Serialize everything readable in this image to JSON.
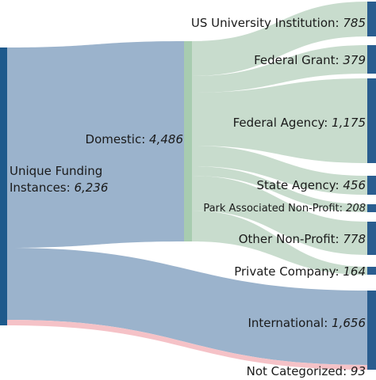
{
  "colors": {
    "source_node": "#1e5a8c",
    "target_node": "#2a5d8f",
    "domestic_node": "#a8ccb0",
    "flow_domestic": "#9bb3cc",
    "flow_domestic_split": "#c8dccd",
    "flow_not_categorized": "#f5c2c7",
    "text": "#1a1a1a"
  },
  "source": {
    "name": "Unique Funding Instances",
    "line1": "Unique Funding",
    "line2_prefix": "Instances: ",
    "value": "6,236"
  },
  "domestic": {
    "name": "Domestic",
    "prefix": "Domestic: ",
    "value": "4,486"
  },
  "targets": [
    {
      "id": "us-university",
      "prefix": "US University Institution: ",
      "value": "785"
    },
    {
      "id": "federal-grant",
      "prefix": "Federal Grant: ",
      "value": "379"
    },
    {
      "id": "federal-agency",
      "prefix": "Federal Agency: ",
      "value": "1,175"
    },
    {
      "id": "state-agency",
      "prefix": "State Agency: ",
      "value": "456"
    },
    {
      "id": "park-associated",
      "prefix": "Park Associated Non-Profit: ",
      "value": "208"
    },
    {
      "id": "other-non-profit",
      "prefix": "Other Non-Profit: ",
      "value": "778"
    },
    {
      "id": "private-company",
      "prefix": "Private Company: ",
      "value": "164"
    },
    {
      "id": "international",
      "prefix": "International: ",
      "value": "1,656"
    },
    {
      "id": "not-categorized",
      "prefix": "Not Categorized: ",
      "value": "93"
    }
  ]
}
